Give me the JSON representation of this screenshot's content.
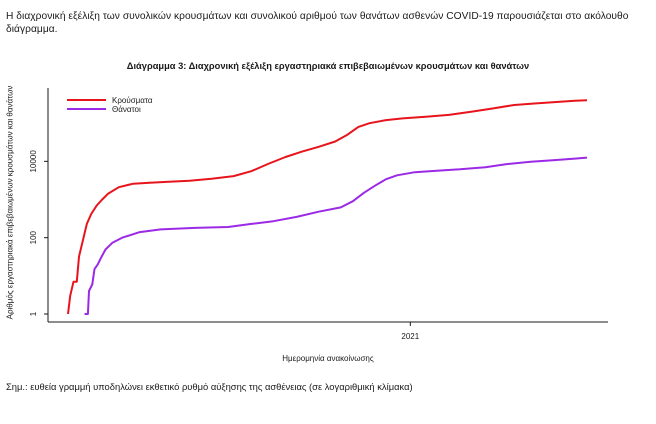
{
  "intro_text": "Η διαχρονική εξέλιξη των συνολικών κρουσμάτων και συνολικού αριθμού των θανάτων ασθενών COVID-19 παρουσιάζεται στο ακόλουθο διάγραμμα.",
  "note": "Σημ.: ευθεία γραμμή υποδηλώνει εκθετικό ρυθμό αύξησης της ασθένειας (σε λογαριθμική κλίμακα)",
  "colors": {
    "cases": "#e8141c",
    "deaths": "#9b2ae6",
    "axis": "#1a1a1a"
  },
  "chart_data": {
    "type": "line",
    "title": "Διάγραμμα 3: Διαχρονική εξέλιξη εργαστηριακά επιβεβαιωμένων κρουσμάτων και θανάτων",
    "xlabel": "Ημερομηνία ανακοίνωσης",
    "ylabel": "Αριθμός εργαστηριακά επιβεβαιωμένων κρουσμάτων και θανάτων",
    "y_scale": "log",
    "ylim": [
      1,
      1000000
    ],
    "yticks": [
      1,
      100,
      10000
    ],
    "ytick_labels": [
      "1",
      "100",
      "10000"
    ],
    "xlim": [
      "2020-02-26",
      "2021-06-10"
    ],
    "xticks": [
      "2021-01-01"
    ],
    "xtick_labels": [
      "2021"
    ],
    "legend_position": "top-left",
    "grid": false,
    "series": [
      {
        "name": "Κρούσματα",
        "color_key": "cases",
        "points": [
          [
            "2020-02-26",
            1
          ],
          [
            "2020-02-28",
            3
          ],
          [
            "2020-03-02",
            7
          ],
          [
            "2020-03-05",
            7
          ],
          [
            "2020-03-07",
            32
          ],
          [
            "2020-03-11",
            99
          ],
          [
            "2020-03-14",
            228
          ],
          [
            "2020-03-18",
            418
          ],
          [
            "2020-03-23",
            695
          ],
          [
            "2020-03-28",
            1000
          ],
          [
            "2020-04-02",
            1400
          ],
          [
            "2020-04-12",
            2100
          ],
          [
            "2020-04-25",
            2600
          ],
          [
            "2020-05-10",
            2750
          ],
          [
            "2020-05-25",
            2900
          ],
          [
            "2020-06-15",
            3100
          ],
          [
            "2020-07-05",
            3500
          ],
          [
            "2020-07-25",
            4100
          ],
          [
            "2020-08-10",
            5500
          ],
          [
            "2020-08-25",
            8500
          ],
          [
            "2020-09-10",
            13000
          ],
          [
            "2020-09-25",
            18000
          ],
          [
            "2020-10-10",
            24000
          ],
          [
            "2020-10-25",
            33000
          ],
          [
            "2020-11-05",
            50000
          ],
          [
            "2020-11-15",
            80000
          ],
          [
            "2020-11-25",
            100000
          ],
          [
            "2020-12-10",
            120000
          ],
          [
            "2020-12-25",
            133000
          ],
          [
            "2021-01-15",
            148000
          ],
          [
            "2021-02-05",
            165000
          ],
          [
            "2021-02-25",
            200000
          ],
          [
            "2021-03-15",
            240000
          ],
          [
            "2021-04-05",
            300000
          ],
          [
            "2021-04-25",
            330000
          ],
          [
            "2021-05-15",
            360000
          ],
          [
            "2021-05-30",
            385000
          ],
          [
            "2021-06-10",
            400000
          ]
        ]
      },
      {
        "name": "Θάνατοι",
        "color_key": "deaths",
        "points": [
          [
            "2020-03-12",
            1
          ],
          [
            "2020-03-15",
            1
          ],
          [
            "2020-03-16",
            4
          ],
          [
            "2020-03-19",
            6
          ],
          [
            "2020-03-21",
            15
          ],
          [
            "2020-03-24",
            20
          ],
          [
            "2020-03-27",
            30
          ],
          [
            "2020-03-31",
            49
          ],
          [
            "2020-04-06",
            73
          ],
          [
            "2020-04-15",
            100
          ],
          [
            "2020-05-01",
            140
          ],
          [
            "2020-05-20",
            165
          ],
          [
            "2020-06-20",
            180
          ],
          [
            "2020-07-20",
            190
          ],
          [
            "2020-08-10",
            230
          ],
          [
            "2020-08-30",
            270
          ],
          [
            "2020-09-20",
            350
          ],
          [
            "2020-10-10",
            480
          ],
          [
            "2020-10-30",
            620
          ],
          [
            "2020-11-10",
            900
          ],
          [
            "2020-11-20",
            1500
          ],
          [
            "2020-11-30",
            2300
          ],
          [
            "2020-12-10",
            3400
          ],
          [
            "2020-12-20",
            4300
          ],
          [
            "2021-01-05",
            5200
          ],
          [
            "2021-01-25",
            5700
          ],
          [
            "2021-02-15",
            6200
          ],
          [
            "2021-03-10",
            7000
          ],
          [
            "2021-03-30",
            8500
          ],
          [
            "2021-04-20",
            9700
          ],
          [
            "2021-05-10",
            10700
          ],
          [
            "2021-05-30",
            11800
          ],
          [
            "2021-06-10",
            12500
          ]
        ]
      }
    ]
  }
}
